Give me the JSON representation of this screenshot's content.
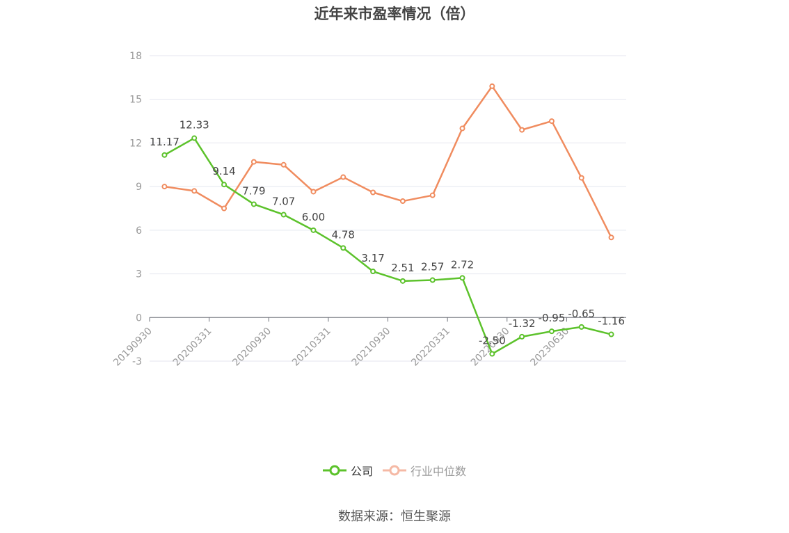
{
  "title": "近年来市盈率情况（倍）",
  "source": "数据来源：恒生聚源",
  "legend": [
    {
      "label": "公司",
      "color": "#5cc22b"
    },
    {
      "label": "行业中位数",
      "color": "#f5b9a5"
    }
  ],
  "chart_data": {
    "type": "line",
    "title": "近年来市盈率情况（倍）",
    "xlabel": "",
    "ylabel": "",
    "ylim": [
      -3,
      18
    ],
    "yticks": [
      -3,
      0,
      3,
      6,
      9,
      12,
      15,
      18
    ],
    "grid": true,
    "legend_position": "bottom",
    "x": [
      "20190930",
      "20191231",
      "20200331",
      "20200630",
      "20200930",
      "20201231",
      "20210331",
      "20210630",
      "20210930",
      "20211231",
      "20220331",
      "20220630",
      "20220930",
      "20221231",
      "20230630",
      "20230930"
    ],
    "x_tick_labels": [
      "20190930",
      "20200331",
      "20200930",
      "20210331",
      "20210930",
      "20220331",
      "20220930",
      "20230630"
    ],
    "series": [
      {
        "name": "公司",
        "color": "#5cc22b",
        "values": [
          11.17,
          12.33,
          9.14,
          7.79,
          7.07,
          6.0,
          4.78,
          3.17,
          2.51,
          2.57,
          2.72,
          -2.5,
          -1.32,
          -0.95,
          -0.65,
          -1.16
        ],
        "labels": [
          "11.17",
          "12.33",
          "9.14",
          "7.79",
          "7.07",
          "6.00",
          "4.78",
          "3.17",
          "2.51",
          "2.57",
          "2.72",
          "-2.50",
          "-1.32",
          "-0.95",
          "-0.65",
          "-1.16"
        ]
      },
      {
        "name": "行业中位数",
        "color": "#f08c5f",
        "values": [
          9.0,
          8.7,
          7.5,
          10.7,
          10.5,
          8.65,
          9.65,
          8.6,
          8.0,
          8.4,
          13.0,
          15.9,
          12.9,
          13.5,
          9.6,
          5.5
        ]
      }
    ]
  }
}
